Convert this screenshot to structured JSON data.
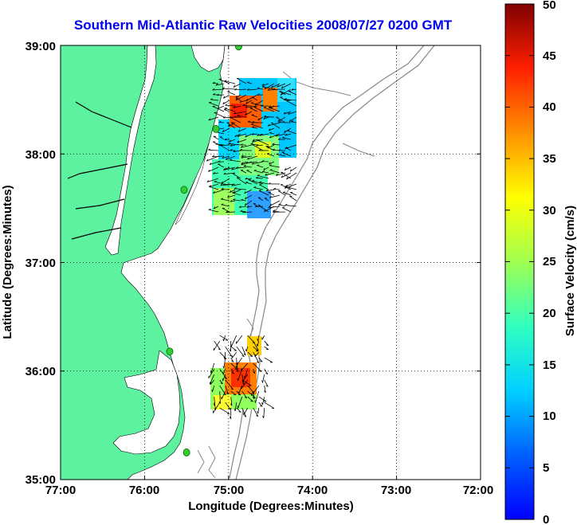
{
  "title": "Southern Mid-Atlantic Raw Velocities 2008/07/27 0200 GMT",
  "axes": {
    "xlabel": "Longitude (Degrees:Minutes)",
    "ylabel": "Latitude (Degrees:Minutes)",
    "x_ticks": [
      "77:00",
      "76:00",
      "75:00",
      "74:00",
      "73:00",
      "72:00"
    ],
    "y_ticks": [
      "39:00",
      "38:00",
      "37:00",
      "36:00",
      "35:00"
    ]
  },
  "colorbar": {
    "label": "Surface Velocity (cm/s)",
    "ticks": [
      "0",
      "5",
      "10",
      "15",
      "20",
      "25",
      "30",
      "35",
      "40",
      "45",
      "50"
    ],
    "range": [
      0,
      50
    ]
  },
  "colors": {
    "land": "#5cf2a0",
    "title": "#0000ee",
    "bathymetry": "#888888",
    "station": "#33cc33"
  },
  "chart_data": {
    "type": "map",
    "xlim": [
      -77,
      -72
    ],
    "ylim": [
      35,
      39
    ],
    "grid": true,
    "stations": [
      {
        "lon": -74.88,
        "lat": 38.99
      },
      {
        "lon": -75.15,
        "lat": 38.23
      },
      {
        "lon": -75.53,
        "lat": 37.67
      },
      {
        "lon": -75.7,
        "lat": 36.18
      },
      {
        "lon": -75.5,
        "lat": 35.25
      }
    ],
    "velocity_regions": [
      {
        "name": "north",
        "lon_range": [
          -75.15,
          -74.15
        ],
        "lat_range": [
          37.42,
          38.67
        ],
        "speed_range": [
          5,
          40
        ]
      },
      {
        "name": "south",
        "lon_range": [
          -75.2,
          -74.55
        ],
        "lat_range": [
          35.62,
          36.35
        ],
        "speed_range": [
          15,
          42
        ]
      }
    ]
  }
}
